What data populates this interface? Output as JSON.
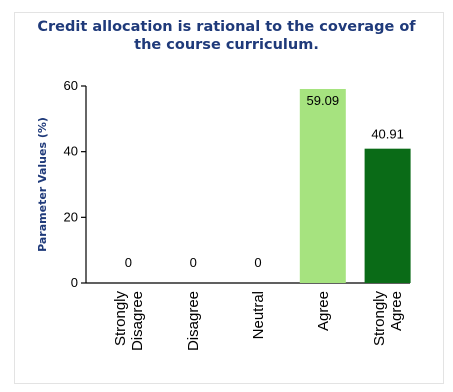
{
  "chart_data": {
    "type": "bar",
    "title": "Credit allocation is rational to the coverage of\nthe course curriculum.",
    "ylabel": "Parameter Values (%)",
    "xlabel": "",
    "ylim": [
      0,
      60
    ],
    "yticks": [
      0,
      20,
      40,
      60
    ],
    "categories": [
      [
        "Strongly",
        "Disagree"
      ],
      [
        "Disagree"
      ],
      [
        "Neutral"
      ],
      [
        "Agree"
      ],
      [
        "Strongly",
        "Agree"
      ]
    ],
    "values": [
      0,
      0,
      0,
      59.09,
      40.91
    ],
    "value_labels": [
      "0",
      "0",
      "0",
      "59.09",
      "40.91"
    ],
    "bar_colors": [
      "#a6e37f",
      "#a6e37f",
      "#a6e37f",
      "#a6e37f",
      "#0a6b17"
    ],
    "grid": false,
    "legend": "none"
  }
}
